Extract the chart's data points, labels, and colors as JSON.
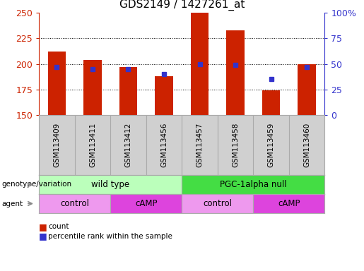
{
  "title": "GDS2149 / 1427261_at",
  "samples": [
    "GSM113409",
    "GSM113411",
    "GSM113412",
    "GSM113456",
    "GSM113457",
    "GSM113458",
    "GSM113459",
    "GSM113460"
  ],
  "counts": [
    212,
    204,
    197,
    188,
    250,
    233,
    174,
    200
  ],
  "percentiles": [
    47,
    45,
    45,
    40,
    50,
    49,
    35,
    47
  ],
  "ymin": 150,
  "ymax": 250,
  "yticks": [
    150,
    175,
    200,
    225,
    250
  ],
  "right_yticks": [
    0,
    25,
    50,
    75,
    100
  ],
  "right_yticklabels": [
    "0",
    "25",
    "50",
    "75",
    "100%"
  ],
  "bar_color": "#cc2200",
  "dot_color": "#3333cc",
  "background_color": "#ffffff",
  "genotype_groups": [
    {
      "label": "wild type",
      "start": 0,
      "end": 3,
      "color": "#bbffbb"
    },
    {
      "label": "PGC-1alpha null",
      "start": 4,
      "end": 7,
      "color": "#44dd44"
    }
  ],
  "agent_groups": [
    {
      "label": "control",
      "start": 0,
      "end": 1,
      "color": "#ee99ee"
    },
    {
      "label": "cAMP",
      "start": 2,
      "end": 3,
      "color": "#dd44dd"
    },
    {
      "label": "control",
      "start": 4,
      "end": 5,
      "color": "#ee99ee"
    },
    {
      "label": "cAMP",
      "start": 6,
      "end": 7,
      "color": "#dd44dd"
    }
  ],
  "tick_color_left": "#cc2200",
  "tick_color_right": "#3333cc",
  "label_color_left": "#cc2200",
  "label_color_right": "#3333cc",
  "fig_width": 5.15,
  "fig_height": 3.84,
  "dpi": 100
}
